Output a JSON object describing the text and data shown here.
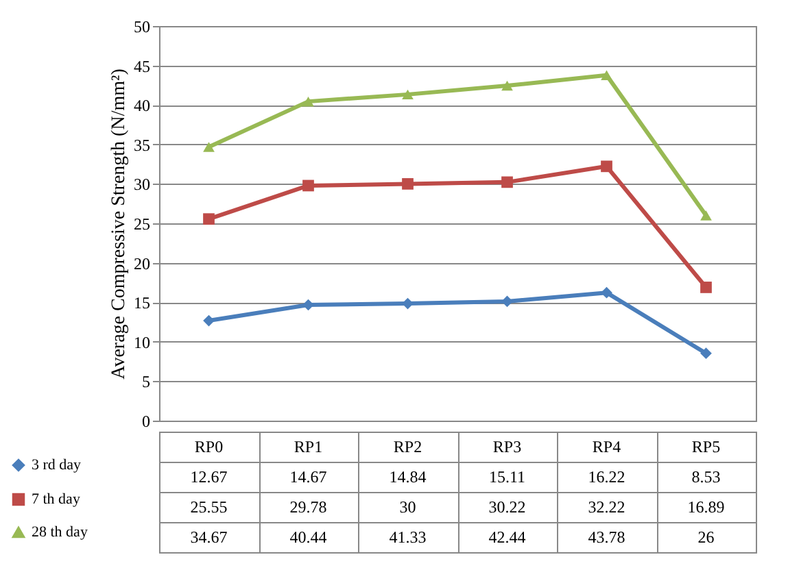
{
  "chart_data": {
    "type": "line",
    "ylabel": "Average Compressive Strength (N/mm²)",
    "categories": [
      "RP0",
      "RP1",
      "RP2",
      "RP3",
      "RP4",
      "RP5"
    ],
    "series": [
      {
        "name": "3 rd day",
        "color": "#4a7ebb",
        "marker": "diamond",
        "values": [
          12.67,
          14.67,
          14.84,
          15.11,
          16.22,
          8.53
        ]
      },
      {
        "name": "7 th day",
        "color": "#be4b48",
        "marker": "square",
        "values": [
          25.55,
          29.78,
          30,
          30.22,
          32.22,
          16.89
        ]
      },
      {
        "name": "28 th day",
        "color": "#98b954",
        "marker": "triangle",
        "values": [
          34.67,
          40.44,
          41.33,
          42.44,
          43.78,
          26
        ]
      }
    ],
    "ylim": [
      0,
      50
    ],
    "yticks": [
      0,
      5,
      10,
      15,
      20,
      25,
      30,
      35,
      40,
      45,
      50
    ],
    "grid": "y",
    "legend": "bottom left",
    "data_labels": true
  }
}
